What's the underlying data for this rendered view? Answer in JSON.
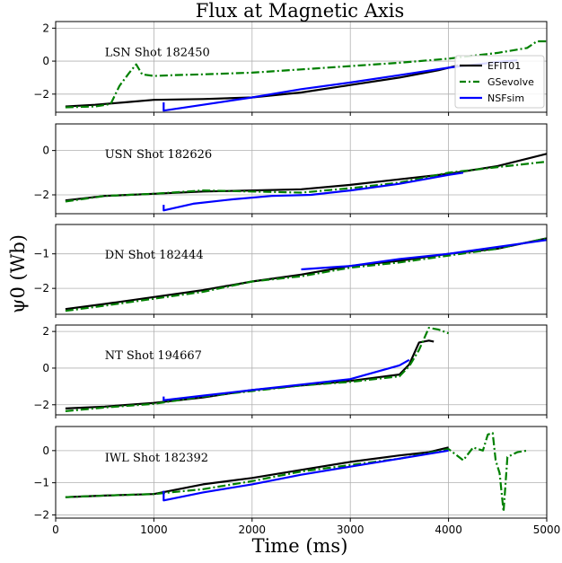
{
  "chart_data": {
    "type": "line",
    "title": "Flux at Magnetic Axis",
    "xlabel": "Time (ms)",
    "ylabel": "ψ0 (Wb)",
    "xlim": [
      0,
      5000
    ],
    "xticks": [
      0,
      1000,
      2000,
      3000,
      4000,
      5000
    ],
    "grid": true,
    "legend": {
      "location": "top-right",
      "entries": [
        {
          "name": "EFIT01",
          "color": "#000000",
          "style": "solid"
        },
        {
          "name": "GSevolve",
          "color": "#008000",
          "style": "dashdot"
        },
        {
          "name": "NSFsim",
          "color": "#0000ff",
          "style": "solid"
        }
      ]
    },
    "panels": [
      {
        "annotation": "LSN Shot 182450",
        "ylim": [
          -3.1,
          2.4
        ],
        "yticks": [
          2,
          0,
          -2
        ],
        "series": [
          {
            "name": "EFIT01",
            "x": [
              100,
              400,
              700,
              1000,
              1500,
              2000,
              2500,
              3000,
              3500,
              3900,
              4100
            ],
            "y": [
              -2.75,
              -2.65,
              -2.5,
              -2.35,
              -2.3,
              -2.2,
              -1.9,
              -1.45,
              -1.0,
              -0.55,
              -0.25
            ]
          },
          {
            "name": "GSevolve",
            "x": [
              100,
              400,
              560,
              650,
              750,
              820,
              880,
              1000,
              1200,
              1500,
              2000,
              2500,
              3000,
              3500,
              4000,
              4500,
              4800,
              4900,
              5000
            ],
            "y": [
              -2.8,
              -2.75,
              -2.6,
              -1.5,
              -0.7,
              -0.2,
              -0.8,
              -0.9,
              -0.85,
              -0.8,
              -0.7,
              -0.5,
              -0.3,
              -0.1,
              0.15,
              0.5,
              0.8,
              1.2,
              1.2
            ]
          },
          {
            "name": "NSFsim",
            "x": [
              1100,
              1100,
              1500,
              2000,
              2500,
              3000,
              3500,
              4000,
              4500,
              4700
            ],
            "y": [
              -2.5,
              -3.0,
              -2.65,
              -2.2,
              -1.7,
              -1.3,
              -0.85,
              -0.4,
              -0.05,
              0.05
            ]
          }
        ]
      },
      {
        "annotation": "USN Shot 182626",
        "ylim": [
          -2.85,
          1.2
        ],
        "yticks": [
          0,
          -2
        ],
        "series": [
          {
            "name": "EFIT01",
            "x": [
              100,
              500,
              1000,
              1500,
              2000,
              2500,
              3000,
              3500,
              4000,
              4500,
              5000
            ],
            "y": [
              -2.25,
              -2.05,
              -1.95,
              -1.85,
              -1.8,
              -1.75,
              -1.55,
              -1.3,
              -1.05,
              -0.7,
              -0.15
            ]
          },
          {
            "name": "GSevolve",
            "x": [
              100,
              500,
              1000,
              1500,
              2000,
              2500,
              3000,
              3500,
              4000,
              4500,
              5000
            ],
            "y": [
              -2.3,
              -2.05,
              -1.95,
              -1.8,
              -1.85,
              -1.9,
              -1.7,
              -1.45,
              -1.0,
              -0.75,
              -0.5
            ]
          },
          {
            "name": "NSFsim",
            "x": [
              1100,
              1100,
              1400,
              1800,
              2200,
              2600,
              3000,
              3500,
              4000,
              4150
            ],
            "y": [
              -2.45,
              -2.7,
              -2.4,
              -2.2,
              -2.05,
              -2.0,
              -1.8,
              -1.5,
              -1.1,
              -1.0
            ]
          }
        ]
      },
      {
        "annotation": "DN Shot 182444",
        "ylim": [
          -2.75,
          -0.15
        ],
        "yticks": [
          -1,
          -2
        ],
        "series": [
          {
            "name": "EFIT01",
            "x": [
              100,
              500,
              1000,
              1500,
              2000,
              2500,
              3000,
              3500,
              4000,
              4500,
              5000
            ],
            "y": [
              -2.6,
              -2.45,
              -2.25,
              -2.05,
              -1.8,
              -1.6,
              -1.35,
              -1.2,
              -1.0,
              -0.85,
              -0.55
            ]
          },
          {
            "name": "GSevolve",
            "x": [
              100,
              500,
              1000,
              1500,
              2000,
              2500,
              3000,
              3500,
              4000,
              4500,
              5000
            ],
            "y": [
              -2.65,
              -2.5,
              -2.3,
              -2.1,
              -1.8,
              -1.65,
              -1.4,
              -1.25,
              -1.05,
              -0.85,
              -0.55
            ]
          },
          {
            "name": "NSFsim",
            "x": [
              2500,
              3000,
              3500,
              4000,
              4500,
              5000
            ],
            "y": [
              -1.45,
              -1.35,
              -1.15,
              -1.0,
              -0.8,
              -0.6
            ]
          }
        ]
      },
      {
        "annotation": "NT Shot 194667",
        "ylim": [
          -2.55,
          2.35
        ],
        "yticks": [
          2,
          0,
          -2
        ],
        "series": [
          {
            "name": "EFIT01",
            "x": [
              100,
              500,
              1000,
              1500,
              2000,
              2500,
              3000,
              3500,
              3600,
              3700,
              3800,
              3850
            ],
            "y": [
              -2.2,
              -2.1,
              -1.9,
              -1.6,
              -1.2,
              -0.95,
              -0.7,
              -0.35,
              0.2,
              1.4,
              1.5,
              1.45
            ]
          },
          {
            "name": "GSevolve",
            "x": [
              100,
              500,
              1000,
              1500,
              2000,
              2500,
              3000,
              3500,
              3600,
              3700,
              3800,
              3900,
              4000
            ],
            "y": [
              -2.35,
              -2.15,
              -1.95,
              -1.55,
              -1.25,
              -0.95,
              -0.75,
              -0.45,
              0.1,
              1.0,
              2.2,
              2.1,
              1.9
            ]
          },
          {
            "name": "NSFsim",
            "x": [
              1100,
              1100,
              1500,
              2000,
              2500,
              3000,
              3500,
              3600
            ],
            "y": [
              -1.55,
              -1.75,
              -1.5,
              -1.2,
              -0.9,
              -0.6,
              0.15,
              0.45
            ]
          }
        ]
      },
      {
        "annotation": "IWL Shot 182392",
        "ylim": [
          -2.1,
          0.75
        ],
        "yticks": [
          0,
          -1,
          -2
        ],
        "series": [
          {
            "name": "EFIT01",
            "x": [
              100,
              500,
              1000,
              1500,
              2000,
              2500,
              3000,
              3500,
              3800,
              4000
            ],
            "y": [
              -1.45,
              -1.4,
              -1.35,
              -1.05,
              -0.85,
              -0.6,
              -0.35,
              -0.15,
              -0.05,
              0.1
            ]
          },
          {
            "name": "GSevolve",
            "x": [
              100,
              500,
              1000,
              1500,
              2000,
              2500,
              3000,
              3500,
              4000,
              4150,
              4250,
              4350,
              4400,
              4450,
              4480,
              4520,
              4560,
              4600,
              4700,
              4800
            ],
            "y": [
              -1.45,
              -1.4,
              -1.35,
              -1.2,
              -0.95,
              -0.65,
              -0.45,
              -0.25,
              0.05,
              -0.3,
              0.1,
              0.0,
              0.5,
              0.55,
              -0.3,
              -0.7,
              -1.9,
              -0.2,
              -0.05,
              0.0
            ]
          },
          {
            "name": "NSFsim",
            "x": [
              1100,
              1100,
              1500,
              2000,
              2500,
              3000,
              3500,
              4000
            ],
            "y": [
              -1.25,
              -1.55,
              -1.3,
              -1.05,
              -0.75,
              -0.5,
              -0.25,
              0.0
            ]
          }
        ]
      }
    ]
  }
}
